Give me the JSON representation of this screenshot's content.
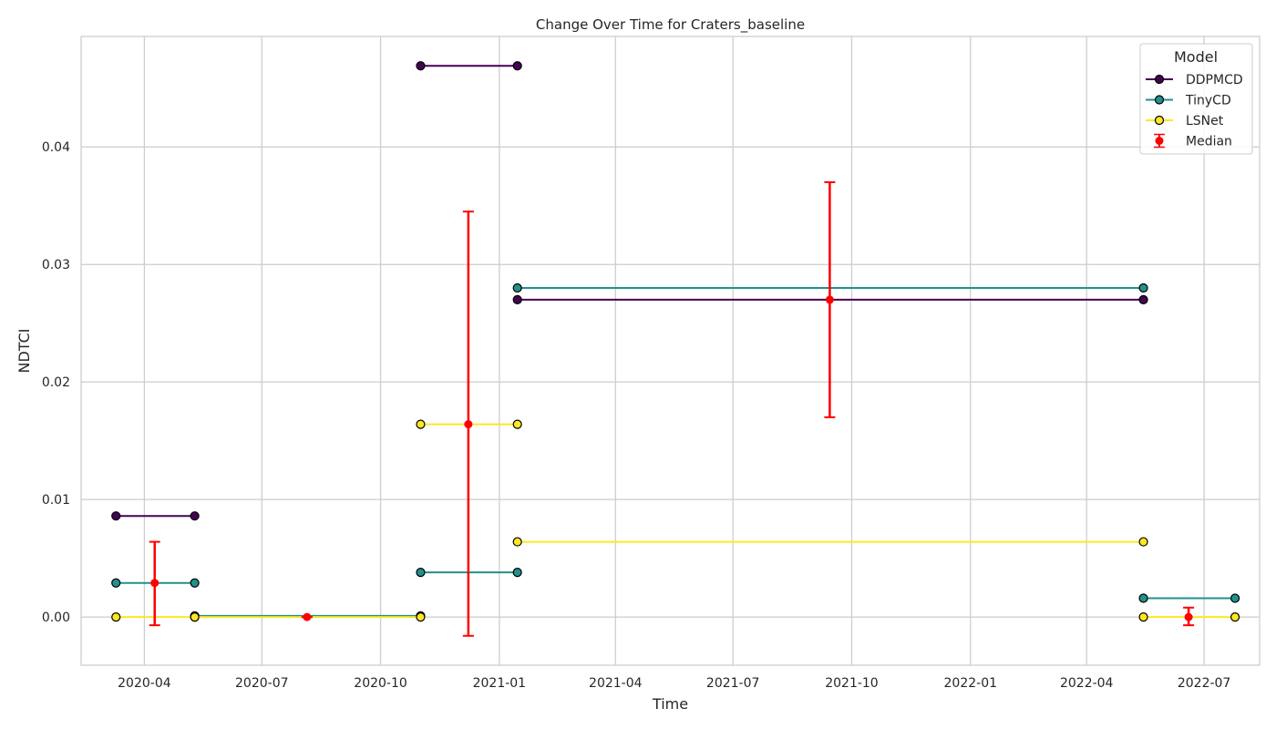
{
  "chart_data": {
    "type": "line",
    "title": "Change Over Time for Craters_baseline",
    "xlabel": "Time",
    "ylabel": "NDTCI",
    "x_axis_type": "date",
    "xlim": [
      "2020-02-12",
      "2022-08-13"
    ],
    "ylim": [
      -0.0041,
      0.0494
    ],
    "x_ticks": [
      "2020-04",
      "2020-07",
      "2020-10",
      "2021-01",
      "2021-04",
      "2021-07",
      "2021-10",
      "2022-01",
      "2022-04",
      "2022-07"
    ],
    "y_ticks": [
      "0.00",
      "0.01",
      "0.02",
      "0.03",
      "0.04"
    ],
    "grid": true,
    "legend": {
      "title": "Model",
      "position": "top-right",
      "entries": [
        "DDPMCD",
        "TinyCD",
        "LSNet",
        "Median"
      ]
    },
    "series": [
      {
        "name": "DDPMCD",
        "color": "#440154",
        "segments": [
          [
            [
              "2020-03-10",
              0.0086
            ],
            [
              "2020-05-10",
              0.0086
            ]
          ],
          [
            [
              "2020-11-01",
              0.0469
            ],
            [
              "2021-01-15",
              0.0469
            ]
          ],
          [
            [
              "2021-01-15",
              0.027
            ],
            [
              "2022-05-15",
              0.027
            ]
          ]
        ]
      },
      {
        "name": "TinyCD",
        "color": "#21918c",
        "segments": [
          [
            [
              "2020-03-10",
              0.0029
            ],
            [
              "2020-05-10",
              0.0029
            ]
          ],
          [
            [
              "2020-05-10",
              0.0001
            ],
            [
              "2020-11-01",
              0.0001
            ]
          ],
          [
            [
              "2020-11-01",
              0.0038
            ],
            [
              "2021-01-15",
              0.0038
            ]
          ],
          [
            [
              "2021-01-15",
              0.028
            ],
            [
              "2022-05-15",
              0.028
            ]
          ],
          [
            [
              "2022-05-15",
              0.0016
            ],
            [
              "2022-07-25",
              0.0016
            ]
          ]
        ]
      },
      {
        "name": "LSNet",
        "color": "#fde725",
        "segments": [
          [
            [
              "2020-03-10",
              0.0
            ],
            [
              "2020-05-10",
              0.0
            ]
          ],
          [
            [
              "2020-05-10",
              0.0
            ],
            [
              "2020-11-01",
              0.0
            ]
          ],
          [
            [
              "2020-11-01",
              0.0164
            ],
            [
              "2021-01-15",
              0.0164
            ]
          ],
          [
            [
              "2021-01-15",
              0.0064
            ],
            [
              "2022-05-15",
              0.0064
            ]
          ],
          [
            [
              "2022-05-15",
              0.0
            ],
            [
              "2022-07-25",
              0.0
            ]
          ]
        ]
      }
    ],
    "median": {
      "name": "Median",
      "color": "#ff0000",
      "points": [
        {
          "x": "2020-04-09",
          "y": 0.0029,
          "low": -0.0007,
          "high": 0.0064
        },
        {
          "x": "2020-08-05",
          "y": 0.0,
          "low": 0.0,
          "high": 0.0
        },
        {
          "x": "2020-12-08",
          "y": 0.0164,
          "low": -0.0016,
          "high": 0.0345
        },
        {
          "x": "2021-09-14",
          "y": 0.027,
          "low": 0.017,
          "high": 0.037
        },
        {
          "x": "2022-06-19",
          "y": 0.0,
          "low": -0.0007,
          "high": 0.0008
        }
      ]
    }
  }
}
